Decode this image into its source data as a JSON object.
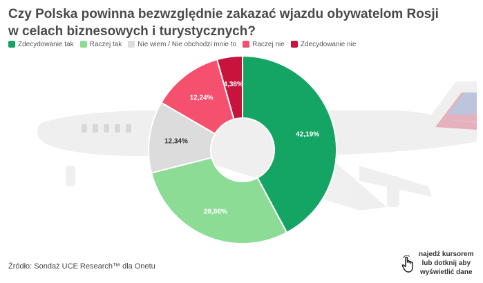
{
  "title": "Czy Polska powinna bezwzględnie zakazać wjazdu obywatelom Rosji w celach biznesowych i turystycznych?",
  "source": "Źródło: Sondaż UCE Research™ dla Onetu",
  "hint": {
    "line1": "najedź kursorem",
    "line2": "lub dotknij aby",
    "line3": "wyświetlić dane",
    "icon": "hand-pointer-icon"
  },
  "chart_data": {
    "type": "pie",
    "donut": true,
    "legend_position": "top-left",
    "series": [
      {
        "name": "Zdecydowanie tak",
        "value": 42.19,
        "label": "42,19%",
        "color": "#14a564",
        "label_color": "#ffffff"
      },
      {
        "name": "Raczej tak",
        "value": 28.86,
        "label": "28,86%",
        "color": "#8cdc96",
        "label_color": "#ffffff"
      },
      {
        "name": "Nie wiem / Nie obchodzi mnie to",
        "value": 12.34,
        "label": "12,34%",
        "color": "#dcdcdc",
        "label_color": "#333333"
      },
      {
        "name": "Raczej nie",
        "value": 12.24,
        "label": "12,24%",
        "color": "#f5506e",
        "label_color": "#ffffff"
      },
      {
        "name": "Zdecydowanie nie",
        "value": 4.38,
        "label": "4,38%",
        "color": "#c8143c",
        "label_color": "#ffffff"
      }
    ]
  }
}
